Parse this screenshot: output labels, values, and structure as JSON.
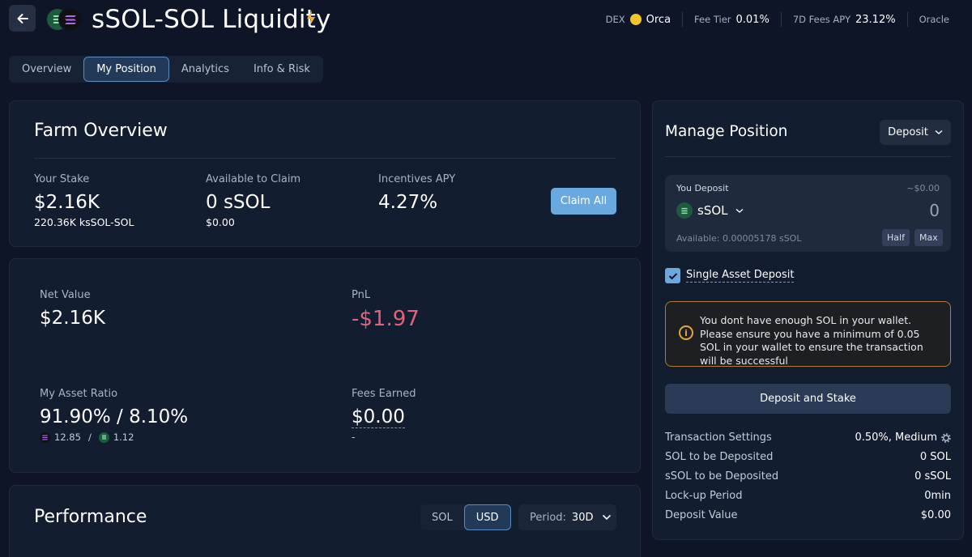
{
  "header": {
    "title": "sSOL-SOL Liquidity",
    "dex_label": "DEX",
    "dex_value": "Orca",
    "fee_tier_label": "Fee Tier",
    "fee_tier_value": "0.01%",
    "fees_apy_label": "7D Fees APY",
    "fees_apy_value": "23.12%",
    "oracle_label": "Oracle"
  },
  "tabs": [
    {
      "label": "Overview",
      "active": false
    },
    {
      "label": "My Position",
      "active": true
    },
    {
      "label": "Analytics",
      "active": false
    },
    {
      "label": "Info & Risk",
      "active": false
    }
  ],
  "farm": {
    "title": "Farm Overview",
    "stake_label": "Your Stake",
    "stake_value": "$2.16K",
    "stake_sub": "220.36K ksSOL-SOL",
    "claim_label": "Available to Claim",
    "claim_value": "0 sSOL",
    "claim_sub": "$0.00",
    "apy_label": "Incentives APY",
    "apy_value": "4.27%",
    "claim_button": "Claim All"
  },
  "position": {
    "net_label": "Net Value",
    "net_value": "$2.16K",
    "pnl_label": "PnL",
    "pnl_value": "-$1.97",
    "ratio_label": "My Asset Ratio",
    "ratio_value": "91.90% / 8.10%",
    "ratio_sol": "12.85",
    "ratio_sep": "/",
    "ratio_ssol": "1.12",
    "fees_label": "Fees Earned",
    "fees_value": "$0.00",
    "fees_sub": "-"
  },
  "performance": {
    "title": "Performance",
    "toggle": [
      "SOL",
      "USD"
    ],
    "period_label": "Period:",
    "period_value": "30D"
  },
  "manage": {
    "title": "Manage Position",
    "mode": "Deposit",
    "deposit_label": "You Deposit",
    "deposit_usd": "~$0.00",
    "token": "sSOL",
    "amount": "0",
    "available": "Available: 0.00005178 sSOL",
    "half": "Half",
    "max": "Max",
    "single_asset": "Single Asset Deposit",
    "warning": "You dont have enough SOL in your wallet. Please ensure you have a minimum of 0.05 SOL in your wallet to ensure the transaction will be successful",
    "action": "Deposit and Stake",
    "rows": [
      {
        "k": "Transaction Settings",
        "v": "0.50%, Medium"
      },
      {
        "k": "SOL to be Deposited",
        "v": "0 SOL"
      },
      {
        "k": "sSOL to be Deposited",
        "v": "0 sSOL"
      },
      {
        "k": "Lock-up Period",
        "v": "0min"
      },
      {
        "k": "Deposit Value",
        "v": "$0.00"
      }
    ]
  },
  "colors": {
    "background": "#0d1526",
    "card": "#131d30",
    "accent": "#6aa9e0",
    "negative": "#e3627a",
    "warning": "#e4a83a"
  }
}
